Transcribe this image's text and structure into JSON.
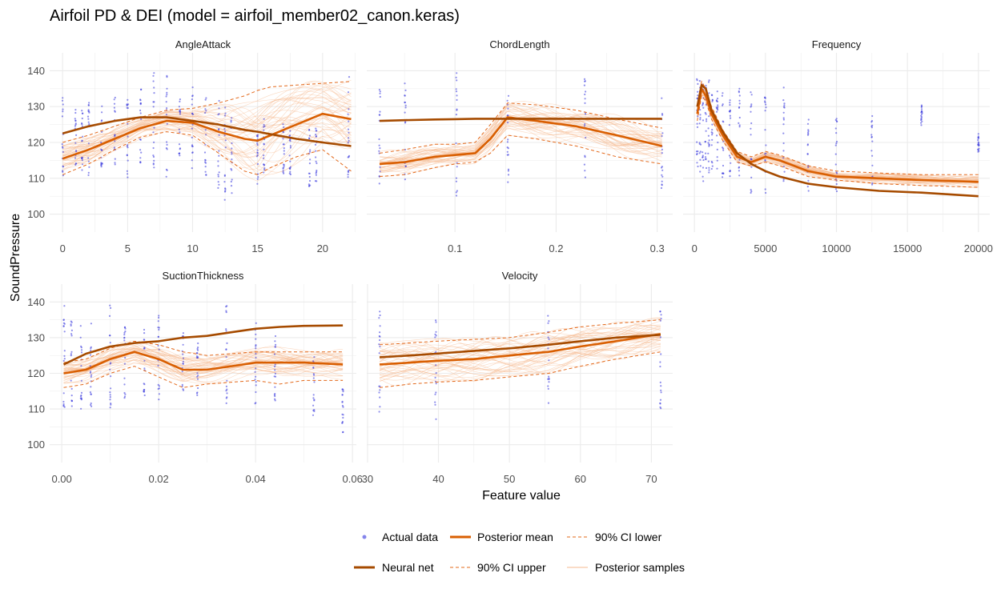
{
  "title": "Airfoil PD & DEI (model = airfoil_member02_canon.keras)",
  "xlabel": "Feature value",
  "ylabel": "SoundPressure",
  "colors": {
    "actual": "#3333dd",
    "posterior_mean": "#d95f02",
    "neural_net": "#a64b00",
    "ci": "#e3681a",
    "samples": "#f5b98f",
    "grid": "#ebebeb"
  },
  "legend": {
    "items": [
      {
        "key": "actual",
        "label": "Actual data"
      },
      {
        "key": "posterior_mean",
        "label": "Posterior mean"
      },
      {
        "key": "ci_lower",
        "label": "90% CI lower"
      },
      {
        "key": "neural_net",
        "label": "Neural net"
      },
      {
        "key": "ci_upper",
        "label": "90% CI upper"
      },
      {
        "key": "samples",
        "label": "Posterior samples"
      }
    ]
  },
  "chart_data": [
    {
      "type": "line",
      "title": "AngleAttack",
      "xlim": [
        -1,
        22.6
      ],
      "ylim": [
        95,
        145
      ],
      "xticks": [
        0,
        5,
        10,
        15,
        20
      ],
      "xtick_labels": [
        "0",
        "5",
        "10",
        "15",
        "20"
      ],
      "yticks": [
        100,
        110,
        120,
        130,
        140
      ],
      "ytick_labels": [
        "100",
        "110",
        "120",
        "130",
        "140"
      ],
      "x": [
        0,
        2,
        4,
        6,
        8,
        10,
        12,
        14,
        15,
        16,
        18,
        20,
        22.2
      ],
      "posterior_mean": [
        115.5,
        118,
        121,
        124,
        126,
        125.5,
        123,
        121,
        120.5,
        122,
        125,
        128,
        126.5
      ],
      "neural_net": [
        122.5,
        124.5,
        126,
        127,
        127,
        126,
        125,
        123.5,
        123,
        122.3,
        121,
        120,
        119
      ],
      "ci_lower": [
        111,
        114,
        118,
        121.5,
        123,
        122,
        117,
        112,
        111,
        113,
        116,
        118,
        112
      ],
      "ci_upper": [
        120,
        122,
        124.5,
        127,
        129,
        129.5,
        131,
        133,
        134.5,
        135.5,
        136,
        136.5,
        137
      ],
      "scatter_x": [
        0,
        1,
        1.5,
        2,
        3,
        4,
        5,
        6,
        7,
        8,
        9,
        10,
        11,
        12,
        12.5,
        13,
        15,
        15.5,
        17,
        17.5,
        19,
        19.5,
        22
      ],
      "scatter_y_min": [
        107,
        110,
        111,
        109,
        110,
        112,
        110,
        111,
        110,
        109,
        113,
        112,
        109,
        106,
        103,
        104,
        108,
        110,
        110,
        110,
        107,
        108,
        109
      ],
      "scatter_y_max": [
        139,
        130,
        130,
        132,
        131,
        133,
        135,
        137,
        140,
        140,
        133,
        138,
        137,
        133,
        130,
        128,
        124,
        127,
        126,
        124,
        125,
        125,
        140
      ]
    },
    {
      "type": "line",
      "title": "ChordLength",
      "xlim": [
        0.0127,
        0.3153
      ],
      "ylim": [
        95,
        145
      ],
      "xticks": [
        0.1,
        0.2,
        0.3
      ],
      "xtick_labels": [
        "0.1",
        "0.2",
        "0.3"
      ],
      "yticks": [
        100,
        110,
        120,
        130,
        140
      ],
      "ytick_labels": [
        "",
        "",
        "",
        "",
        ""
      ],
      "x": [
        0.0254,
        0.05,
        0.08,
        0.1,
        0.12,
        0.135,
        0.152,
        0.18,
        0.22,
        0.26,
        0.3048
      ],
      "posterior_mean": [
        114,
        114.5,
        116,
        116.5,
        117,
        121,
        127,
        126,
        124.5,
        122,
        119
      ],
      "neural_net": [
        126,
        126.2,
        126.4,
        126.5,
        126.6,
        126.6,
        126.6,
        126.6,
        126.6,
        126.6,
        126.6
      ],
      "ci_lower": [
        110.5,
        111,
        113,
        114,
        114.5,
        117,
        122,
        121,
        119,
        116,
        114
      ],
      "ci_upper": [
        117,
        118,
        119.5,
        119.5,
        120,
        125,
        131,
        130.5,
        129,
        126.5,
        124
      ],
      "scatter_x": [
        0.0254,
        0.0508,
        0.1016,
        0.1524,
        0.2286,
        0.3048
      ],
      "scatter_y_min": [
        107,
        108,
        104,
        106,
        110,
        104
      ],
      "scatter_y_max": [
        139,
        138,
        140,
        136,
        140,
        133
      ]
    },
    {
      "type": "line",
      "title": "Frequency",
      "xlim": [
        -800,
        20800
      ],
      "ylim": [
        95,
        145
      ],
      "xticks": [
        0,
        5000,
        10000,
        15000,
        20000
      ],
      "xtick_labels": [
        "0",
        "5000",
        "10000",
        "15000",
        "20000"
      ],
      "yticks": [
        100,
        110,
        120,
        130,
        140
      ],
      "ytick_labels": [
        "",
        "",
        "",
        "",
        ""
      ],
      "x": [
        200,
        500,
        800,
        1200,
        2000,
        3000,
        4000,
        5000,
        6000,
        8000,
        10000,
        13000,
        16000,
        20000
      ],
      "posterior_mean": [
        128,
        135,
        133,
        128,
        122,
        116,
        114.5,
        116,
        115,
        112,
        110.5,
        110,
        109.5,
        109
      ],
      "neural_net": [
        130,
        136,
        135,
        129,
        123,
        117,
        114,
        112,
        110.5,
        108.5,
        107.5,
        106.5,
        106,
        105
      ],
      "ci_lower": [
        126,
        133,
        131.5,
        126.5,
        120.5,
        114.5,
        113.5,
        114.5,
        113.5,
        110.5,
        109.5,
        108.5,
        108,
        107.5
      ],
      "ci_upper": [
        130,
        137,
        135,
        130,
        123.5,
        117.5,
        116,
        117.5,
        116.5,
        113.5,
        112,
        111.5,
        111,
        111
      ],
      "scatter_x": [
        200,
        400,
        600,
        800,
        1000,
        1250,
        1600,
        2000,
        2500,
        3150,
        4000,
        5000,
        6300,
        8000,
        10000,
        12500,
        16000,
        20000
      ],
      "scatter_y_min": [
        112,
        110,
        109,
        110,
        110,
        112,
        111,
        110,
        108,
        107,
        104,
        104,
        106,
        105,
        105,
        107,
        124,
        117
      ],
      "scatter_y_max": [
        140,
        140,
        139,
        139,
        138,
        137,
        136,
        136,
        133,
        136,
        136,
        134,
        136,
        130,
        127,
        128,
        131,
        123
      ]
    },
    {
      "type": "line",
      "title": "SuctionThickness",
      "xlim": [
        -0.0025,
        0.0608
      ],
      "ylim": [
        95,
        145
      ],
      "xticks": [
        0,
        0.02,
        0.04,
        0.06
      ],
      "xtick_labels": [
        "0.00",
        "0.02",
        "0.04",
        "0.06"
      ],
      "yticks": [
        100,
        110,
        120,
        130,
        140
      ],
      "ytick_labels": [
        "100",
        "110",
        "120",
        "130",
        "140"
      ],
      "x": [
        0.0004,
        0.005,
        0.01,
        0.015,
        0.02,
        0.025,
        0.03,
        0.035,
        0.04,
        0.045,
        0.05,
        0.058
      ],
      "posterior_mean": [
        120,
        121,
        124,
        126,
        124,
        121,
        121,
        122,
        123,
        123,
        123,
        122.5
      ],
      "neural_net": [
        122.5,
        125.5,
        127.5,
        128.5,
        129,
        130,
        130.5,
        131.5,
        132.5,
        133,
        133.3,
        133.4
      ],
      "ci_lower": [
        116,
        117,
        120,
        122,
        119,
        116,
        117,
        117.5,
        118,
        117,
        118,
        118
      ],
      "ci_upper": [
        123,
        124,
        127,
        129,
        128,
        126,
        125,
        125.5,
        126,
        126,
        126,
        126
      ],
      "scatter_x": [
        0.0005,
        0.002,
        0.004,
        0.006,
        0.01,
        0.013,
        0.017,
        0.02,
        0.025,
        0.028,
        0.034,
        0.04,
        0.044,
        0.052,
        0.058
      ],
      "scatter_y_min": [
        110,
        106,
        108,
        109,
        109,
        112,
        110,
        112,
        113,
        113,
        110,
        108,
        108,
        106,
        103
      ],
      "scatter_y_max": [
        140,
        140,
        138,
        136,
        140,
        135,
        134,
        138,
        132,
        130,
        140,
        135,
        134,
        126,
        118
      ]
    },
    {
      "type": "line",
      "title": "Velocity",
      "xlim": [
        29.9,
        73.0
      ],
      "ylim": [
        95,
        145
      ],
      "xticks": [
        30,
        40,
        50,
        60,
        70
      ],
      "xtick_labels": [
        "30",
        "40",
        "50",
        "60",
        "70"
      ],
      "yticks": [
        100,
        110,
        120,
        130,
        140
      ],
      "ytick_labels": [
        "",
        "",
        "",
        "",
        ""
      ],
      "x": [
        31.7,
        36,
        39.6,
        45,
        50,
        55.5,
        60,
        65,
        71.3
      ],
      "posterior_mean": [
        122.5,
        123,
        123.5,
        124,
        125,
        126,
        127.5,
        129,
        131
      ],
      "neural_net": [
        124.5,
        125,
        125.5,
        126.3,
        127,
        128,
        129,
        130,
        130.8
      ],
      "ci_lower": [
        116,
        117,
        117.5,
        118,
        119,
        120,
        122,
        124,
        126
      ],
      "ci_upper": [
        128,
        128.5,
        129,
        129.5,
        130,
        131.5,
        133,
        134,
        135
      ],
      "scatter_x": [
        31.7,
        39.6,
        55.5,
        71.3
      ],
      "scatter_y_min": [
        107,
        104,
        110,
        106
      ],
      "scatter_y_max": [
        139,
        138,
        137,
        141
      ]
    }
  ]
}
